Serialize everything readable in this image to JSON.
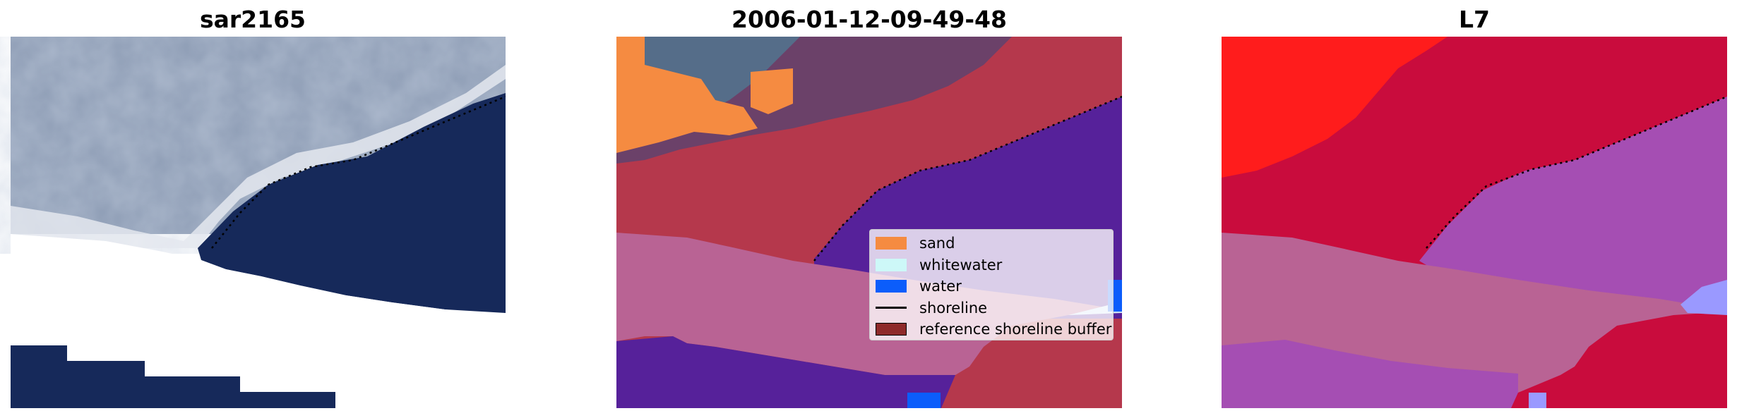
{
  "panels": [
    {
      "title": "sar2165",
      "kind": "rgb"
    },
    {
      "title": "2006-01-12-09-49-48",
      "kind": "classified"
    },
    {
      "title": "L7",
      "kind": "index"
    }
  ],
  "legend": {
    "items": [
      {
        "label": "sand",
        "color": "#f58b41",
        "type": "patch"
      },
      {
        "label": "whitewater",
        "color": "#cdf8f8",
        "type": "patch"
      },
      {
        "label": "water",
        "color": "#0b5dfb",
        "type": "patch"
      },
      {
        "label": "shoreline",
        "color": "#000000",
        "type": "line"
      },
      {
        "label": "reference shoreline buffer",
        "color": "#8e2a2a",
        "type": "patch"
      }
    ]
  },
  "colors": {
    "ocean_dark": "#16295a",
    "land_rgb": "#8e9db5",
    "foam": "#e4e7ef",
    "buffer_red": "#b5384c",
    "buffer_pink": "#b96394",
    "water_purple": "#56219a",
    "index_red": "#ff1c1c",
    "index_crimson": "#c90c3d",
    "index_violet": "#a54eb3",
    "index_lilac": "#9a99ff"
  }
}
